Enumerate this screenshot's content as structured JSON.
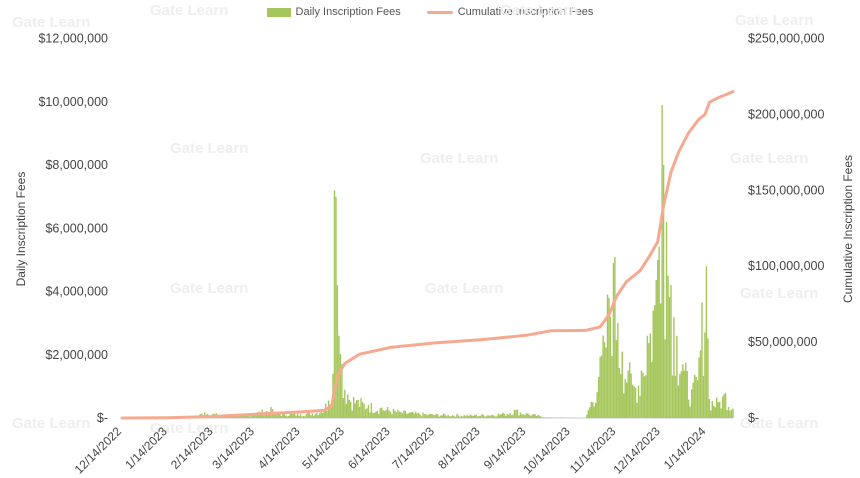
{
  "chart_data": {
    "type": "bar+line",
    "title": "",
    "legend": {
      "placement": "top-center",
      "items": [
        {
          "label": "Daily Inscription Fees",
          "kind": "bar",
          "color": "#a4c65a"
        },
        {
          "label": "Cumulative Inscription Fees",
          "kind": "line",
          "color": "#f6a98f"
        }
      ]
    },
    "x_axis": {
      "type": "date",
      "range": [
        "2022-12-14",
        "2024-02-01"
      ],
      "tick_labels": [
        "12/14/2022",
        "1/14/2023",
        "2/14/2023",
        "3/14/2023",
        "4/14/2023",
        "5/14/2023",
        "6/14/2023",
        "7/14/2023",
        "8/14/2023",
        "9/14/2023",
        "10/14/2023",
        "11/14/2023",
        "12/14/2023",
        "1/14/2024"
      ],
      "tick_dates": [
        "2022-12-14",
        "2023-01-14",
        "2023-02-14",
        "2023-03-14",
        "2023-04-14",
        "2023-05-14",
        "2023-06-14",
        "2023-07-14",
        "2023-08-14",
        "2023-09-14",
        "2023-10-14",
        "2023-11-14",
        "2023-12-14",
        "2024-01-14"
      ]
    },
    "y_left": {
      "label": "Daily Inscription Fees",
      "ylim": [
        0,
        12000000
      ],
      "ticks": [
        0,
        2000000,
        4000000,
        6000000,
        8000000,
        10000000,
        12000000
      ],
      "tick_labels": [
        "$-",
        "$2,000,000",
        "$4,000,000",
        "$6,000,000",
        "$8,000,000",
        "$10,000,000",
        "$12,000,000"
      ]
    },
    "y_right": {
      "label": "Cumulative Inscription Fees",
      "ylim": [
        0,
        250000000
      ],
      "ticks": [
        0,
        50000000,
        100000000,
        150000000,
        200000000,
        250000000
      ],
      "tick_labels": [
        "$-",
        "$50,000,000",
        "$100,000,000",
        "$150,000,000",
        "$200,000,000",
        "$250,000,000"
      ]
    },
    "grid": false,
    "series": [
      {
        "name": "Daily Inscription Fees",
        "type": "bar",
        "axis": "left",
        "color": "#a4c65a",
        "keypoints": [
          [
            "2022-12-14",
            0
          ],
          [
            "2023-01-31",
            0
          ],
          [
            "2023-02-01",
            40000
          ],
          [
            "2023-02-08",
            180000
          ],
          [
            "2023-02-20",
            90000
          ],
          [
            "2023-03-10",
            120000
          ],
          [
            "2023-03-26",
            280000
          ],
          [
            "2023-03-27",
            140000
          ],
          [
            "2023-04-14",
            130000
          ],
          [
            "2023-04-28",
            220000
          ],
          [
            "2023-05-03",
            550000
          ],
          [
            "2023-05-06",
            1400000
          ],
          [
            "2023-05-07",
            7200000
          ],
          [
            "2023-05-08",
            7000000
          ],
          [
            "2023-05-09",
            4200000
          ],
          [
            "2023-05-10",
            2600000
          ],
          [
            "2023-05-12",
            1700000
          ],
          [
            "2023-05-16",
            750000
          ],
          [
            "2023-05-22",
            560000
          ],
          [
            "2023-05-30",
            420000
          ],
          [
            "2023-06-08",
            330000
          ],
          [
            "2023-06-20",
            200000
          ],
          [
            "2023-07-10",
            120000
          ],
          [
            "2023-08-10",
            90000
          ],
          [
            "2023-08-30",
            140000
          ],
          [
            "2023-09-06",
            260000
          ],
          [
            "2023-09-14",
            150000
          ],
          [
            "2023-09-28",
            20000
          ],
          [
            "2023-10-24",
            0
          ],
          [
            "2023-10-26",
            250000
          ],
          [
            "2023-11-02",
            1300000
          ],
          [
            "2023-11-06",
            2400000
          ],
          [
            "2023-11-09",
            3800000
          ],
          [
            "2023-11-12",
            4900000
          ],
          [
            "2023-11-15",
            3000000
          ],
          [
            "2023-11-18",
            2100000
          ],
          [
            "2023-11-22",
            1500000
          ],
          [
            "2023-11-26",
            1000000
          ],
          [
            "2023-12-01",
            1500000
          ],
          [
            "2023-12-05",
            2600000
          ],
          [
            "2023-12-09",
            3400000
          ],
          [
            "2023-12-12",
            5000000
          ],
          [
            "2023-12-15",
            9900000
          ],
          [
            "2023-12-16",
            8000000
          ],
          [
            "2023-12-18",
            6200000
          ],
          [
            "2023-12-21",
            4200000
          ],
          [
            "2023-12-25",
            2600000
          ],
          [
            "2023-12-30",
            1500000
          ],
          [
            "2024-01-04",
            900000
          ],
          [
            "2024-01-08",
            1200000
          ],
          [
            "2024-01-14",
            4800000
          ],
          [
            "2024-01-16",
            600000
          ],
          [
            "2024-01-22",
            500000
          ],
          [
            "2024-01-27",
            800000
          ],
          [
            "2024-02-01",
            300000
          ]
        ]
      },
      {
        "name": "Cumulative Inscription Fees",
        "type": "line",
        "axis": "right",
        "color": "#f6a98f",
        "points": [
          [
            "2022-12-14",
            0
          ],
          [
            "2023-01-14",
            200000
          ],
          [
            "2023-02-14",
            1000000
          ],
          [
            "2023-03-14",
            2500000
          ],
          [
            "2023-04-14",
            4000000
          ],
          [
            "2023-04-30",
            5000000
          ],
          [
            "2023-05-05",
            8000000
          ],
          [
            "2023-05-09",
            28000000
          ],
          [
            "2023-05-14",
            36000000
          ],
          [
            "2023-05-24",
            42000000
          ],
          [
            "2023-06-14",
            46500000
          ],
          [
            "2023-07-14",
            49500000
          ],
          [
            "2023-08-14",
            51500000
          ],
          [
            "2023-09-14",
            54500000
          ],
          [
            "2023-10-01",
            57500000
          ],
          [
            "2023-10-24",
            57700000
          ],
          [
            "2023-11-03",
            60000000
          ],
          [
            "2023-11-09",
            68000000
          ],
          [
            "2023-11-14",
            80000000
          ],
          [
            "2023-11-21",
            90000000
          ],
          [
            "2023-11-30",
            97000000
          ],
          [
            "2023-12-06",
            106000000
          ],
          [
            "2023-12-12",
            116000000
          ],
          [
            "2023-12-16",
            140000000
          ],
          [
            "2023-12-21",
            162000000
          ],
          [
            "2023-12-26",
            175000000
          ],
          [
            "2024-01-02",
            188000000
          ],
          [
            "2024-01-09",
            197000000
          ],
          [
            "2024-01-13",
            200000000
          ],
          [
            "2024-01-16",
            208000000
          ],
          [
            "2024-01-22",
            211000000
          ],
          [
            "2024-02-01",
            215000000
          ]
        ]
      }
    ]
  },
  "watermark": "Gate Learn"
}
